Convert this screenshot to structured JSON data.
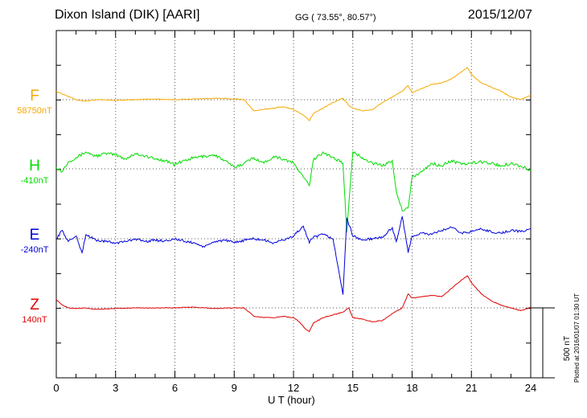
{
  "header": {
    "station": "Dixon Island (DIK)  [AARI]",
    "coords": "GG ( 73.55°,  80.57°)",
    "date": "2015/12/07"
  },
  "components": [
    {
      "letter": "F",
      "baseline": "58750nT",
      "color": "#f5a800"
    },
    {
      "letter": "H",
      "baseline": "-410nT",
      "color": "#00dd00"
    },
    {
      "letter": "E",
      "baseline": "-240nT",
      "color": "#0000dd"
    },
    {
      "letter": "Z",
      "baseline": "140nT",
      "color": "#dd0000"
    }
  ],
  "xaxis": {
    "label": "U T (hour)",
    "ticks": [
      "0",
      "3",
      "6",
      "9",
      "12",
      "15",
      "18",
      "21",
      "24"
    ]
  },
  "scale_bar": {
    "label": "500 nT",
    "value_nT": 500
  },
  "footer": {
    "plotted": "Plotted at 2016/01/07 01:30 UT"
  },
  "chart_data": {
    "type": "line",
    "title": "Dixon Island (DIK)  [AARI]",
    "xlabel": "U T (hour)",
    "xlim": [
      0,
      24
    ],
    "grid": true,
    "y_units": "nT (relative to component baseline, scale bar 500 nT)",
    "series": [
      {
        "name": "F",
        "baseline_nT": 58750,
        "x": [
          0,
          0.5,
          1,
          1.5,
          2,
          3,
          4,
          5,
          6,
          7,
          8,
          9,
          9.5,
          10,
          10.5,
          11,
          11.5,
          12,
          12.5,
          12.8,
          13,
          13.5,
          14,
          14.5,
          14.8,
          15,
          15.5,
          16,
          16.5,
          17,
          17.5,
          17.8,
          18,
          18.5,
          19,
          19.5,
          20,
          20.5,
          20.8,
          21,
          21.5,
          22,
          22.5,
          23,
          23.5,
          24
        ],
        "y": [
          60,
          30,
          0,
          -10,
          0,
          -5,
          0,
          5,
          0,
          5,
          10,
          5,
          0,
          -80,
          -70,
          -60,
          -50,
          -70,
          -110,
          -150,
          -100,
          -60,
          -20,
          10,
          -40,
          -60,
          -80,
          -70,
          -20,
          20,
          60,
          100,
          50,
          80,
          110,
          120,
          150,
          200,
          230,
          180,
          120,
          90,
          60,
          20,
          0,
          30
        ]
      },
      {
        "name": "H",
        "baseline_nT": -410,
        "x": [
          0,
          0.3,
          0.6,
          1,
          1.5,
          2,
          2.5,
          3,
          3.5,
          4,
          4.5,
          5,
          5.5,
          6,
          6.5,
          7,
          7.5,
          8,
          8.5,
          9,
          9.5,
          10,
          10.5,
          11,
          11.5,
          12,
          12.5,
          12.8,
          13,
          13.5,
          14,
          14.5,
          14.7,
          15,
          15.5,
          16,
          16.5,
          17,
          17.2,
          17.5,
          17.8,
          18,
          18.5,
          19,
          19.5,
          20,
          20.5,
          21,
          21.5,
          22,
          22.5,
          23,
          23.5,
          24
        ],
        "y": [
          10,
          -20,
          50,
          80,
          120,
          90,
          110,
          100,
          70,
          110,
          90,
          70,
          60,
          30,
          60,
          80,
          90,
          100,
          60,
          10,
          40,
          80,
          40,
          90,
          70,
          40,
          -60,
          -120,
          60,
          120,
          80,
          40,
          -450,
          120,
          80,
          40,
          20,
          60,
          -160,
          -300,
          -280,
          -60,
          -20,
          40,
          20,
          60,
          30,
          40,
          50,
          40,
          20,
          40,
          20,
          -10
        ]
      },
      {
        "name": "E",
        "baseline_nT": -240,
        "x": [
          0,
          0.3,
          0.6,
          1,
          1.3,
          1.5,
          2,
          2.5,
          3,
          3.5,
          4,
          4.5,
          5,
          5.5,
          6,
          6.5,
          7,
          7.5,
          8,
          8.5,
          9,
          9.5,
          10,
          10.5,
          11,
          11.5,
          12,
          12.5,
          12.8,
          13,
          13.5,
          14,
          14.5,
          14.7,
          15,
          15.5,
          16,
          16.5,
          17,
          17.2,
          17.5,
          17.8,
          18,
          18.5,
          19,
          19.5,
          20,
          20.5,
          21,
          21.5,
          22,
          22.5,
          23,
          23.5,
          24
        ],
        "y": [
          0,
          60,
          -20,
          20,
          -100,
          30,
          -10,
          -20,
          -30,
          -20,
          0,
          -20,
          -10,
          -15,
          0,
          -20,
          -30,
          -60,
          -20,
          -10,
          -30,
          -10,
          0,
          -10,
          -30,
          -10,
          20,
          90,
          -30,
          10,
          30,
          0,
          -400,
          150,
          20,
          -10,
          0,
          10,
          80,
          -20,
          160,
          -100,
          20,
          40,
          30,
          60,
          80,
          40,
          50,
          70,
          50,
          40,
          60,
          50,
          70
        ]
      },
      {
        "name": "Z",
        "baseline_nT": 140,
        "x": [
          0,
          0.3,
          0.6,
          1,
          1.5,
          2,
          3,
          4,
          5,
          6,
          7,
          8,
          9,
          9.5,
          10,
          10.5,
          11,
          11.5,
          12,
          12.3,
          12.6,
          12.8,
          13,
          13.5,
          14,
          14.5,
          14.8,
          15,
          15.5,
          16,
          16.5,
          17,
          17.5,
          17.8,
          18,
          18.5,
          19,
          19.5,
          20,
          20.5,
          20.8,
          21,
          21.5,
          22,
          22.5,
          23,
          23.5,
          24
        ],
        "y": [
          60,
          20,
          0,
          -5,
          0,
          -10,
          -5,
          0,
          0,
          0,
          5,
          -5,
          0,
          0,
          -60,
          -70,
          -70,
          -60,
          -70,
          -100,
          -150,
          -170,
          -110,
          -70,
          -50,
          -30,
          0,
          -70,
          -80,
          -100,
          -90,
          -40,
          0,
          100,
          70,
          80,
          90,
          80,
          140,
          200,
          230,
          180,
          100,
          50,
          20,
          0,
          -20,
          5
        ]
      }
    ]
  }
}
